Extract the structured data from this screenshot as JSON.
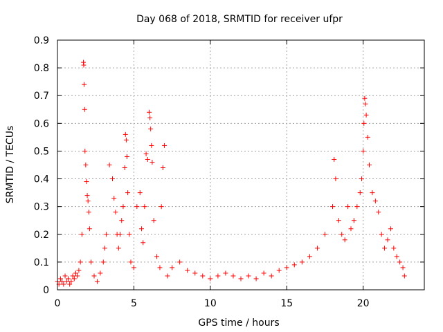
{
  "chart_data": {
    "type": "scatter",
    "title": "Day 068 of 2018, SRMTID for receiver ufpr",
    "xlabel": "GPS time / hours",
    "ylabel": "SRMTID / TECUs",
    "xlim": [
      0,
      24
    ],
    "ylim": [
      0,
      0.9
    ],
    "grid": true,
    "marker": "+",
    "color": "#ff0000",
    "x_ticks": [
      "0",
      "5",
      "10",
      "15",
      "20"
    ],
    "y_ticks": [
      "0",
      "0.1",
      "0.2",
      "0.3",
      "0.4",
      "0.5",
      "0.6",
      "0.7",
      "0.8",
      "0.9"
    ],
    "series": [
      {
        "name": "SRMTID",
        "x": [
          0.0,
          0.1,
          0.2,
          0.3,
          0.4,
          0.5,
          0.6,
          0.7,
          0.8,
          0.9,
          1.0,
          1.1,
          1.2,
          1.3,
          1.4,
          1.5,
          1.6,
          1.7,
          1.72,
          1.75,
          1.78,
          1.8,
          1.85,
          1.9,
          1.95,
          2.0,
          2.05,
          2.1,
          2.2,
          2.4,
          2.6,
          2.8,
          3.0,
          3.1,
          3.2,
          3.4,
          3.6,
          3.7,
          3.8,
          3.9,
          4.0,
          4.1,
          4.2,
          4.3,
          4.4,
          4.45,
          4.5,
          4.55,
          4.6,
          4.7,
          4.8,
          5.0,
          5.2,
          5.4,
          5.5,
          5.6,
          5.7,
          5.8,
          5.9,
          6.0,
          6.05,
          6.1,
          6.15,
          6.2,
          6.3,
          6.5,
          6.7,
          6.8,
          6.9,
          7.0,
          7.2,
          7.5,
          8.0,
          8.5,
          9.0,
          9.5,
          10.0,
          10.5,
          11.0,
          11.5,
          12.0,
          12.5,
          13.0,
          13.5,
          14.0,
          14.5,
          15.0,
          15.5,
          16.0,
          16.5,
          17.0,
          17.5,
          18.0,
          18.1,
          18.2,
          18.4,
          18.6,
          18.8,
          19.0,
          19.2,
          19.4,
          19.6,
          19.8,
          19.9,
          20.0,
          20.05,
          20.1,
          20.15,
          20.2,
          20.3,
          20.4,
          20.6,
          20.8,
          21.0,
          21.2,
          21.4,
          21.6,
          21.8,
          22.0,
          22.2,
          22.4,
          22.6,
          22.7
        ],
        "y": [
          0.03,
          0.02,
          0.04,
          0.03,
          0.02,
          0.05,
          0.03,
          0.04,
          0.02,
          0.03,
          0.05,
          0.04,
          0.06,
          0.05,
          0.07,
          0.1,
          0.2,
          0.82,
          0.81,
          0.74,
          0.65,
          0.5,
          0.45,
          0.39,
          0.34,
          0.32,
          0.28,
          0.22,
          0.1,
          0.05,
          0.03,
          0.06,
          0.1,
          0.15,
          0.2,
          0.45,
          0.4,
          0.33,
          0.28,
          0.2,
          0.15,
          0.2,
          0.25,
          0.3,
          0.44,
          0.56,
          0.54,
          0.48,
          0.35,
          0.2,
          0.1,
          0.08,
          0.3,
          0.35,
          0.22,
          0.17,
          0.3,
          0.49,
          0.47,
          0.64,
          0.62,
          0.58,
          0.52,
          0.46,
          0.25,
          0.12,
          0.08,
          0.3,
          0.44,
          0.52,
          0.05,
          0.08,
          0.1,
          0.07,
          0.06,
          0.05,
          0.04,
          0.05,
          0.06,
          0.05,
          0.04,
          0.05,
          0.04,
          0.06,
          0.05,
          0.07,
          0.08,
          0.09,
          0.1,
          0.12,
          0.15,
          0.2,
          0.3,
          0.47,
          0.4,
          0.25,
          0.2,
          0.18,
          0.3,
          0.22,
          0.25,
          0.3,
          0.35,
          0.4,
          0.5,
          0.6,
          0.69,
          0.67,
          0.63,
          0.55,
          0.45,
          0.35,
          0.32,
          0.28,
          0.2,
          0.15,
          0.18,
          0.22,
          0.15,
          0.12,
          0.1,
          0.08,
          0.05
        ]
      }
    ]
  }
}
